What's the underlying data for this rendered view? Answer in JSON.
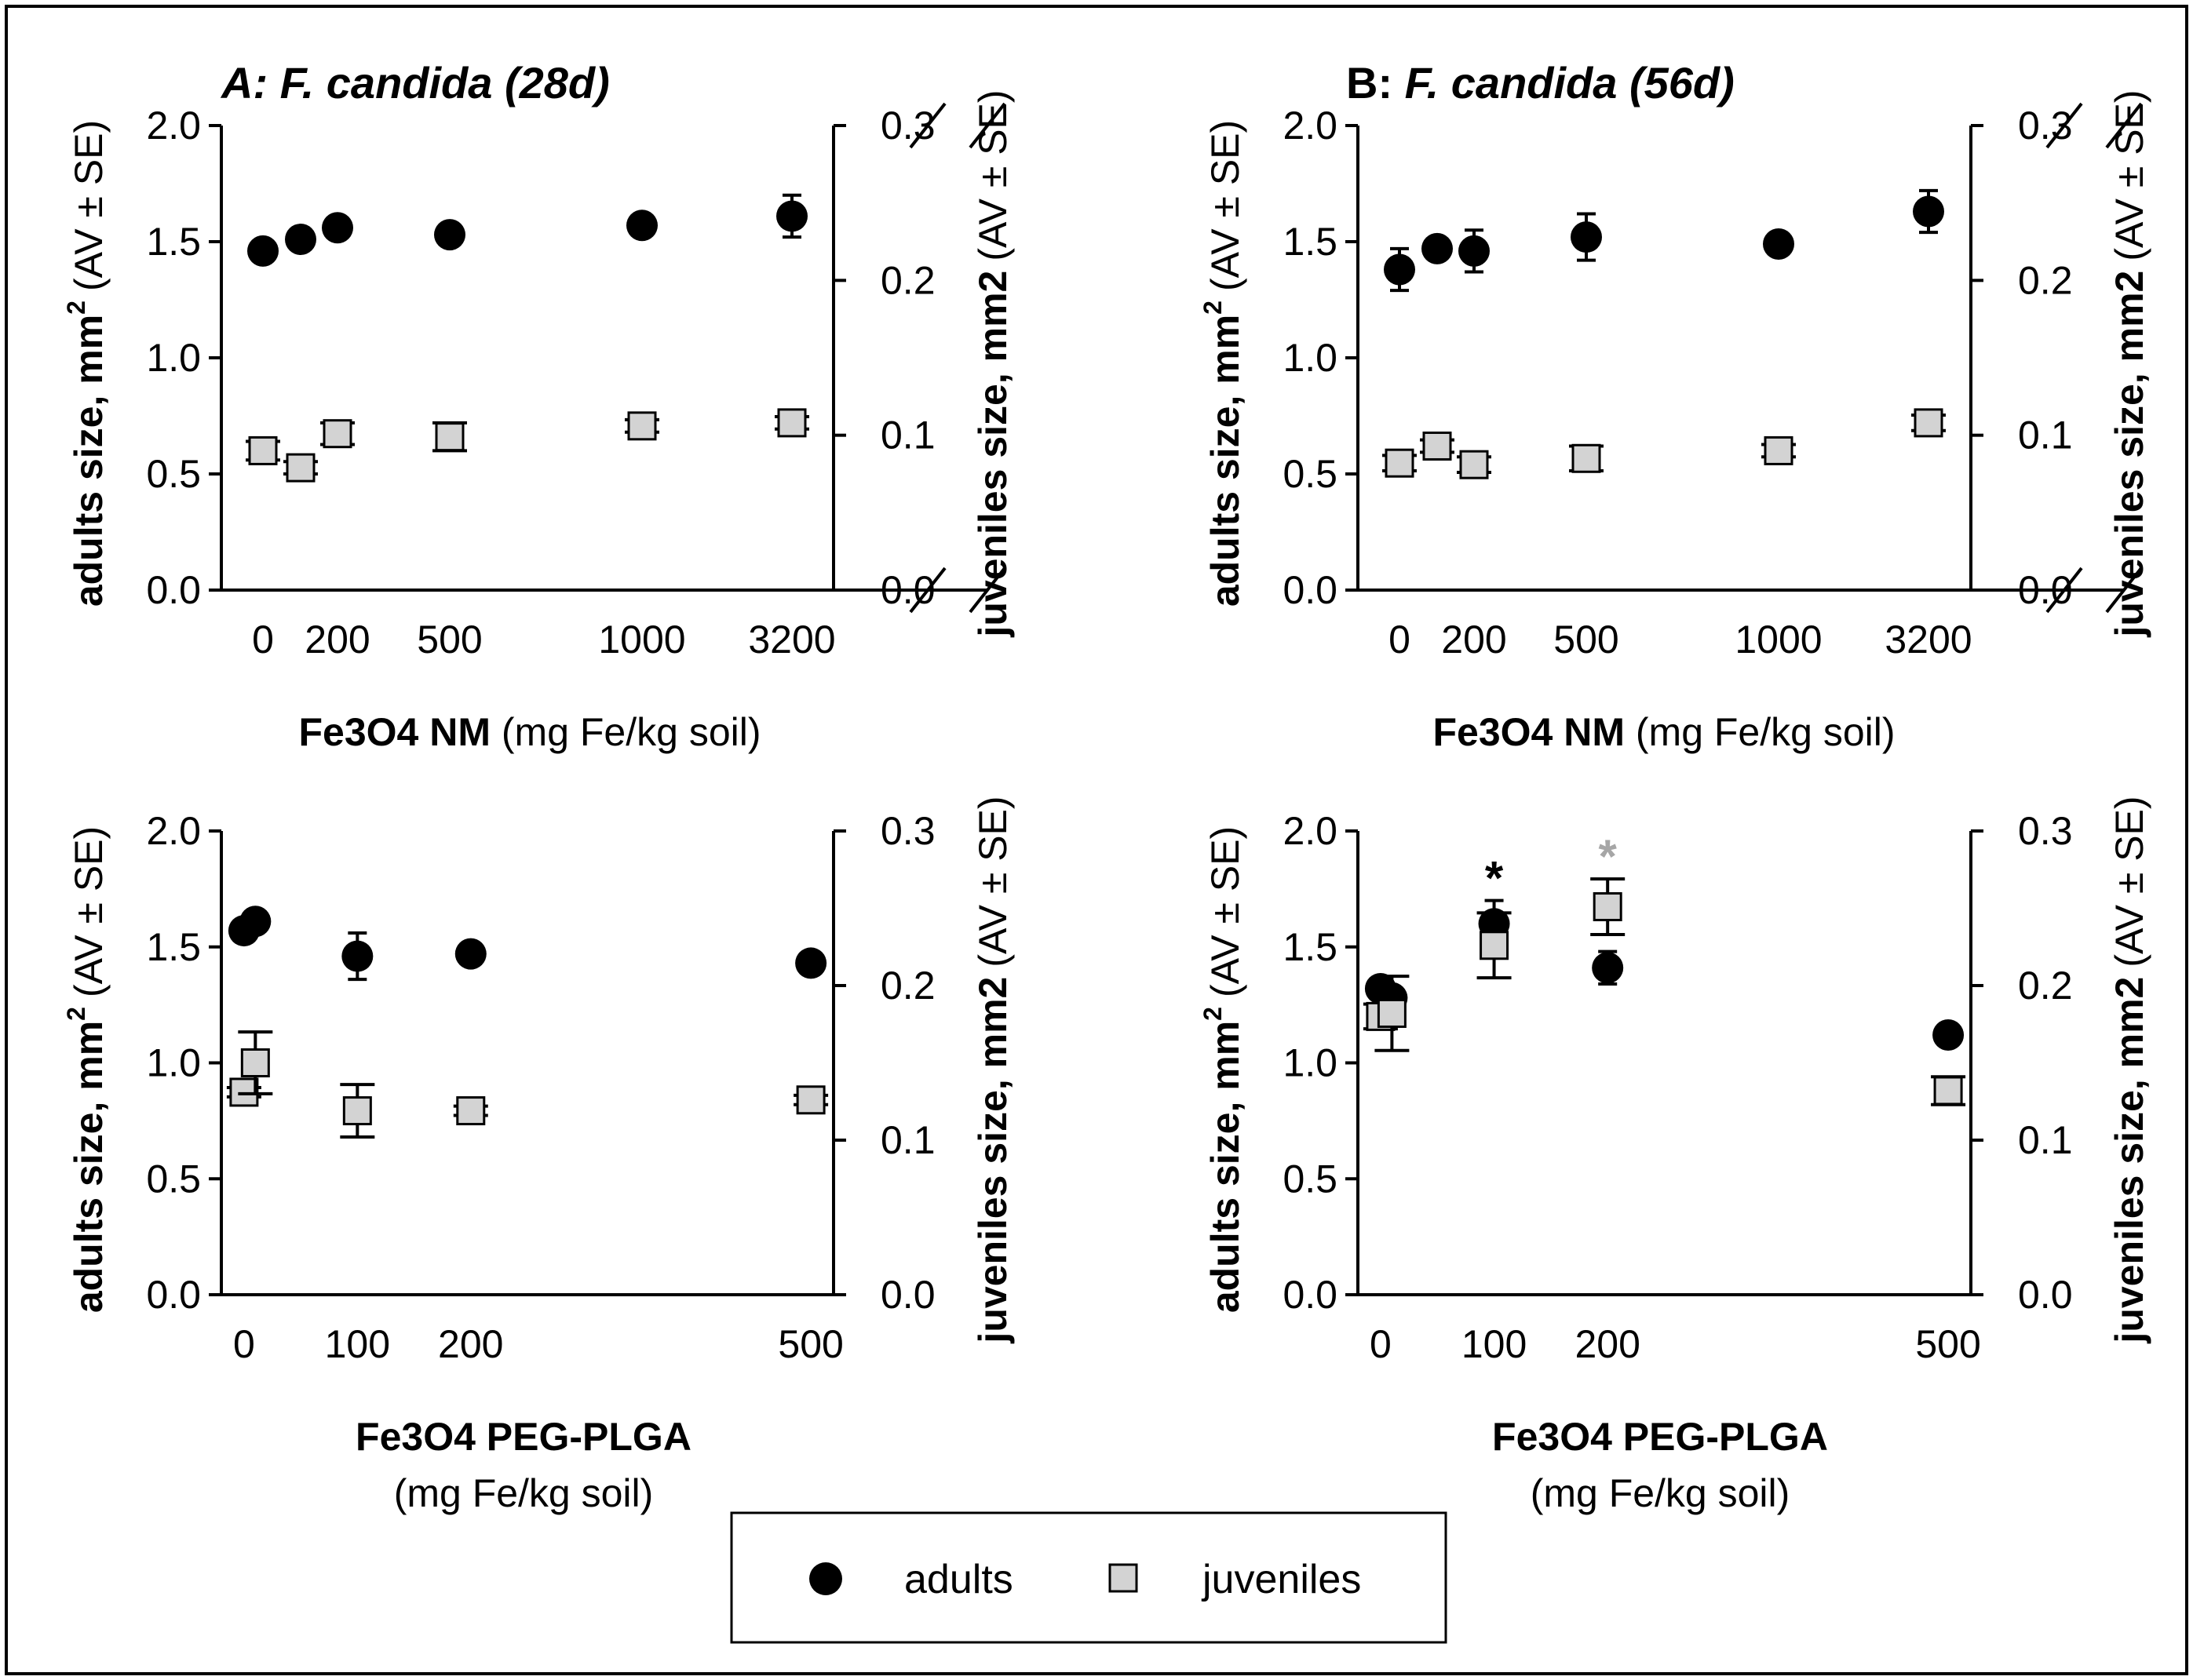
{
  "figure": {
    "border_color": "#000000",
    "adult_color": "#000000",
    "juvenile_fill": "#d3d3d3",
    "juvenile_stroke": "#000000",
    "sig_adult_color": "#000000",
    "sig_juvenile_color": "#a6a6a6"
  },
  "legend": {
    "adults_label": "adults",
    "juveniles_label": "juveniles"
  },
  "chart_data": [
    {
      "type": "scatter",
      "panel": "A",
      "title_prefix": "A:",
      "title_species": "F. candida (28d)",
      "xlabel_bold": "Fe3O4 NM",
      "xlabel_units": "(mg Fe/kg soil)",
      "ylabel_left_bold": "adults size, mm",
      "ylabel_left_sup": "2",
      "ylabel_left_tail": "(AV ± SE)",
      "ylabel_right_bold": "juveniles size, mm2",
      "ylabel_right_tail": "(AV ± SE)",
      "x_ticks": [
        "0",
        "200",
        "500",
        "1000",
        "3200"
      ],
      "x_tick_values": [
        0,
        200,
        500,
        1000,
        3200
      ],
      "x_axis_break": true,
      "ylim_left": [
        0,
        2.0
      ],
      "ylim_right": [
        0,
        0.3
      ],
      "y_ticks_left": [
        "0.0",
        "0.5",
        "1.0",
        "1.5",
        "2.0"
      ],
      "y_ticks_right": [
        "0.0",
        "0.1",
        "0.2",
        "0.3"
      ],
      "series": [
        {
          "name": "adults",
          "axis": "left",
          "x": [
            0,
            100,
            200,
            500,
            1000,
            3200
          ],
          "y": [
            1.46,
            1.51,
            1.56,
            1.53,
            1.57,
            1.61
          ],
          "err": [
            0.02,
            0.02,
            0.02,
            0.02,
            0.02,
            0.09
          ],
          "sig": [
            false,
            false,
            false,
            false,
            false,
            false
          ]
        },
        {
          "name": "juveniles",
          "axis": "right",
          "x": [
            0,
            100,
            200,
            500,
            1000,
            3200
          ],
          "y": [
            0.09,
            0.079,
            0.101,
            0.099,
            0.106,
            0.108
          ],
          "err": [
            0.006,
            0.004,
            0.007,
            0.009,
            0.004,
            0.004
          ],
          "sig": [
            false,
            false,
            false,
            false,
            false,
            false
          ]
        }
      ]
    },
    {
      "type": "scatter",
      "panel": "B",
      "title_prefix": "B:",
      "title_species": "F. candida (56d)",
      "xlabel_bold": "Fe3O4 NM",
      "xlabel_units": "(mg Fe/kg soil)",
      "ylabel_left_bold": "adults size, mm",
      "ylabel_left_sup": "2",
      "ylabel_left_tail": "(AV ± SE)",
      "ylabel_right_bold": "juveniles size, mm2",
      "ylabel_right_tail": "(AV ± SE)",
      "x_ticks": [
        "0",
        "200",
        "500",
        "1000",
        "3200"
      ],
      "x_tick_values": [
        0,
        200,
        500,
        1000,
        3200
      ],
      "x_axis_break": true,
      "ylim_left": [
        0,
        2.0
      ],
      "ylim_right": [
        0,
        0.3
      ],
      "y_ticks_left": [
        "0.0",
        "0.5",
        "1.0",
        "1.5",
        "2.0"
      ],
      "y_ticks_right": [
        "0.0",
        "0.1",
        "0.2",
        "0.3"
      ],
      "series": [
        {
          "name": "adults",
          "axis": "left",
          "x": [
            0,
            100,
            200,
            500,
            1000,
            3200
          ],
          "y": [
            1.38,
            1.47,
            1.46,
            1.52,
            1.49,
            1.63
          ],
          "err": [
            0.09,
            0.03,
            0.09,
            0.1,
            0.03,
            0.09
          ],
          "sig": [
            false,
            false,
            false,
            false,
            false,
            false
          ]
        },
        {
          "name": "juveniles",
          "axis": "right",
          "x": [
            0,
            100,
            200,
            500,
            1000,
            3200
          ],
          "y": [
            0.082,
            0.093,
            0.081,
            0.085,
            0.09,
            0.108
          ],
          "err": [
            0.005,
            0.004,
            0.005,
            0.008,
            0.004,
            0.005
          ],
          "sig": [
            false,
            false,
            false,
            false,
            false,
            false
          ]
        }
      ]
    },
    {
      "type": "scatter",
      "panel": "C",
      "xlabel_bold": "Fe3O4 PEG-PLGA",
      "xlabel_units": "(mg Fe/kg soil)",
      "ylabel_left_bold": "adults size, mm",
      "ylabel_left_sup": "2",
      "ylabel_left_tail": "(AV ± SE)",
      "ylabel_right_bold": "juveniles size, mm2",
      "ylabel_right_tail": "(AV ± SE)",
      "x_ticks": [
        "0",
        "100",
        "200",
        "500"
      ],
      "x_tick_values": [
        0,
        100,
        200,
        500
      ],
      "x_axis_break": false,
      "ylim_left": [
        0,
        2.0
      ],
      "ylim_right": [
        0,
        0.3
      ],
      "y_ticks_left": [
        "0.0",
        "0.5",
        "1.0",
        "1.5",
        "2.0"
      ],
      "y_ticks_right": [
        "0.0",
        "0.1",
        "0.2",
        "0.3"
      ],
      "series": [
        {
          "name": "adults",
          "axis": "left",
          "x": [
            0,
            10,
            100,
            200,
            500
          ],
          "y": [
            1.57,
            1.61,
            1.46,
            1.47,
            1.43
          ],
          "err": [
            0.04,
            0.02,
            0.1,
            0.02,
            0.02
          ],
          "sig": [
            false,
            false,
            false,
            false,
            false
          ]
        },
        {
          "name": "juveniles",
          "axis": "right",
          "x": [
            0,
            10,
            100,
            200,
            500
          ],
          "y": [
            0.131,
            0.15,
            0.119,
            0.119,
            0.126
          ],
          "err": [
            0.003,
            0.02,
            0.017,
            0.003,
            0.003
          ],
          "sig": [
            false,
            false,
            false,
            false,
            false
          ]
        }
      ]
    },
    {
      "type": "scatter",
      "panel": "D",
      "xlabel_bold": "Fe3O4 PEG-PLGA",
      "xlabel_units": "(mg Fe/kg soil)",
      "ylabel_left_bold": "adults size, mm",
      "ylabel_left_sup": "2",
      "ylabel_left_tail": "(AV ± SE)",
      "ylabel_right_bold": "juveniles size, mm2",
      "ylabel_right_tail": "(AV ± SE)",
      "x_ticks": [
        "0",
        "100",
        "200",
        "500"
      ],
      "x_tick_values": [
        0,
        100,
        200,
        500
      ],
      "x_axis_break": false,
      "ylim_left": [
        0,
        2.0
      ],
      "ylim_right": [
        0,
        0.3
      ],
      "y_ticks_left": [
        "0.0",
        "0.5",
        "1.0",
        "1.5",
        "2.0"
      ],
      "y_ticks_right": [
        "0.0",
        "0.1",
        "0.2",
        "0.3"
      ],
      "series": [
        {
          "name": "adults",
          "axis": "left",
          "x": [
            0,
            10,
            100,
            200,
            500
          ],
          "y": [
            1.32,
            1.28,
            1.6,
            1.41,
            1.12
          ],
          "err": [
            0.02,
            0.02,
            0.1,
            0.07,
            0.02
          ],
          "sig": [
            false,
            false,
            true,
            false,
            false
          ]
        },
        {
          "name": "juveniles",
          "axis": "right",
          "x": [
            0,
            10,
            100,
            200,
            500
          ],
          "y": [
            0.18,
            0.182,
            0.226,
            0.251,
            0.132
          ],
          "err": [
            0.008,
            0.024,
            0.021,
            0.018,
            0.009
          ],
          "sig": [
            false,
            false,
            false,
            true,
            false
          ]
        }
      ]
    }
  ]
}
